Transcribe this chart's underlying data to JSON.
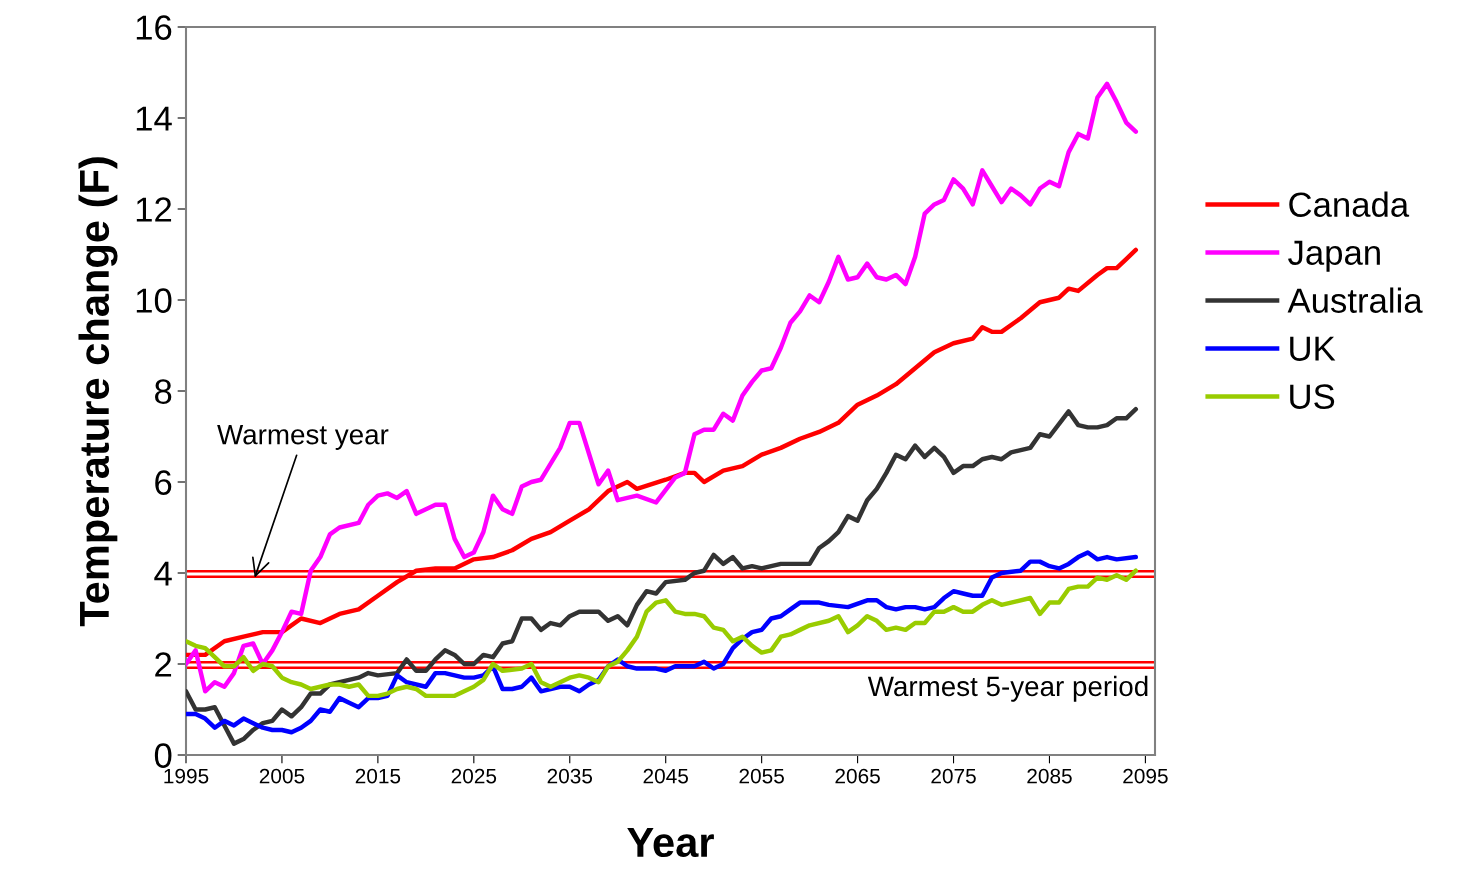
{
  "chart_data": {
    "type": "line",
    "xlabel": "Year",
    "ylabel": "Temperature change (F)",
    "xlim": [
      1995,
      2096
    ],
    "xticks": [
      1995,
      2005,
      2015,
      2025,
      2035,
      2045,
      2055,
      2065,
      2075,
      2085,
      2095
    ],
    "ylim": [
      0,
      16
    ],
    "yticks": [
      0,
      2,
      4,
      6,
      8,
      10,
      12,
      14,
      16
    ],
    "grid": false,
    "legend": "right",
    "marker": "none",
    "line_style": "solid",
    "ref_lines": [
      {
        "axis": "y",
        "value": 4.04,
        "label": "Warmest year",
        "color": "#ff0000"
      },
      {
        "axis": "y",
        "value": 3.92,
        "color": "#ff0000"
      },
      {
        "axis": "y",
        "value": 2.04,
        "label": "Warmest 5-year period",
        "color": "#ff0000"
      },
      {
        "axis": "y",
        "value": 1.92,
        "color": "#ff0000"
      }
    ],
    "series": [
      {
        "name": "Canada",
        "color": "#ff0000",
        "x": [
          1995,
          1997,
          1999,
          2001,
          2003,
          2005,
          2007,
          2009,
          2011,
          2013,
          2015,
          2017,
          2019,
          2021,
          2023,
          2025,
          2027,
          2029,
          2031,
          2033,
          2035,
          2037,
          2039,
          2041,
          2042,
          2045,
          2047,
          2048,
          2049,
          2051,
          2053,
          2055,
          2057,
          2059,
          2061,
          2063,
          2065,
          2067,
          2069,
          2071,
          2073,
          2075,
          2077,
          2078,
          2079,
          2080,
          2082,
          2084,
          2086,
          2087,
          2088,
          2090,
          2091,
          2092,
          2093,
          2094
        ],
        "values": [
          2.2,
          2.2,
          2.5,
          2.6,
          2.7,
          2.7,
          3.0,
          2.9,
          3.1,
          3.2,
          3.5,
          3.8,
          4.05,
          4.1,
          4.1,
          4.3,
          4.35,
          4.5,
          4.75,
          4.9,
          5.15,
          5.4,
          5.8,
          6.0,
          5.85,
          6.05,
          6.2,
          6.2,
          6.0,
          6.25,
          6.35,
          6.6,
          6.75,
          6.95,
          7.1,
          7.3,
          7.7,
          7.9,
          8.15,
          8.5,
          8.85,
          9.05,
          9.15,
          9.4,
          9.3,
          9.3,
          9.6,
          9.95,
          10.05,
          10.25,
          10.2,
          10.55,
          10.7,
          10.7,
          10.9,
          11.1
        ]
      },
      {
        "name": "Japan",
        "color": "#ff00ff",
        "x": [
          1995,
          1996,
          1997,
          1998,
          1999,
          2000,
          2001,
          2002,
          2003,
          2004,
          2005,
          2006,
          2007,
          2008,
          2009,
          2010,
          2011,
          2013,
          2014,
          2015,
          2016,
          2017,
          2018,
          2019,
          2021,
          2022,
          2023,
          2024,
          2025,
          2026,
          2027,
          2028,
          2029,
          2030,
          2031,
          2032,
          2034,
          2035,
          2036,
          2038,
          2039,
          2040,
          2042,
          2044,
          2046,
          2047,
          2048,
          2049,
          2050,
          2051,
          2052,
          2053,
          2054,
          2055,
          2056,
          2057,
          2058,
          2059,
          2060,
          2061,
          2062,
          2063,
          2064,
          2065,
          2066,
          2067,
          2068,
          2069,
          2070,
          2071,
          2072,
          2073,
          2074,
          2075,
          2076,
          2077,
          2078,
          2079,
          2080,
          2081,
          2082,
          2083,
          2084,
          2085,
          2086,
          2087,
          2088,
          2089,
          2090,
          2091,
          2092,
          2093,
          2094
        ],
        "values": [
          2.0,
          2.3,
          1.4,
          1.6,
          1.5,
          1.8,
          2.4,
          2.45,
          2.0,
          2.3,
          2.7,
          3.15,
          3.1,
          4.05,
          4.35,
          4.85,
          5.0,
          5.1,
          5.5,
          5.7,
          5.75,
          5.65,
          5.8,
          5.3,
          5.5,
          5.5,
          4.75,
          4.35,
          4.45,
          4.9,
          5.7,
          5.4,
          5.3,
          5.9,
          6.0,
          6.05,
          6.75,
          7.3,
          7.3,
          5.95,
          6.25,
          5.6,
          5.7,
          5.55,
          6.1,
          6.2,
          7.05,
          7.15,
          7.15,
          7.5,
          7.35,
          7.9,
          8.2,
          8.45,
          8.5,
          8.95,
          9.5,
          9.75,
          10.1,
          9.95,
          10.4,
          10.95,
          10.45,
          10.5,
          10.8,
          10.5,
          10.45,
          10.55,
          10.35,
          10.95,
          11.9,
          12.1,
          12.2,
          12.65,
          12.45,
          12.1,
          12.85,
          12.5,
          12.15,
          12.45,
          12.3,
          12.1,
          12.45,
          12.6,
          12.5,
          13.25,
          13.65,
          13.55,
          14.45,
          14.75,
          14.35,
          13.9,
          13.7
        ]
      },
      {
        "name": "Australia",
        "color": "#333333",
        "x": [
          1995,
          1996,
          1997,
          1998,
          1999,
          2000,
          2001,
          2002,
          2003,
          2004,
          2005,
          2006,
          2007,
          2008,
          2009,
          2010,
          2011,
          2013,
          2014,
          2015,
          2017,
          2018,
          2019,
          2020,
          2021,
          2022,
          2023,
          2024,
          2025,
          2026,
          2027,
          2028,
          2029,
          2030,
          2031,
          2032,
          2033,
          2034,
          2035,
          2036,
          2038,
          2039,
          2040,
          2041,
          2042,
          2043,
          2044,
          2045,
          2047,
          2048,
          2049,
          2050,
          2051,
          2052,
          2053,
          2054,
          2055,
          2057,
          2060,
          2061,
          2062,
          2063,
          2064,
          2065,
          2066,
          2067,
          2068,
          2069,
          2070,
          2071,
          2072,
          2073,
          2074,
          2075,
          2076,
          2077,
          2078,
          2079,
          2080,
          2081,
          2083,
          2084,
          2085,
          2087,
          2088,
          2089,
          2090,
          2091,
          2092,
          2093,
          2094
        ],
        "values": [
          1.4,
          1.0,
          1.0,
          1.05,
          0.65,
          0.25,
          0.35,
          0.55,
          0.7,
          0.75,
          1.0,
          0.85,
          1.05,
          1.35,
          1.35,
          1.55,
          1.6,
          1.7,
          1.8,
          1.75,
          1.8,
          2.1,
          1.85,
          1.85,
          2.1,
          2.3,
          2.2,
          2.0,
          2.0,
          2.2,
          2.15,
          2.45,
          2.5,
          3.0,
          3.0,
          2.75,
          2.9,
          2.85,
          3.05,
          3.15,
          3.15,
          2.95,
          3.05,
          2.85,
          3.3,
          3.6,
          3.55,
          3.8,
          3.85,
          4.0,
          4.05,
          4.4,
          4.2,
          4.35,
          4.1,
          4.15,
          4.1,
          4.2,
          4.2,
          4.55,
          4.7,
          4.9,
          5.25,
          5.15,
          5.6,
          5.85,
          6.2,
          6.6,
          6.5,
          6.8,
          6.55,
          6.75,
          6.55,
          6.2,
          6.35,
          6.35,
          6.5,
          6.55,
          6.5,
          6.65,
          6.75,
          7.05,
          7.0,
          7.55,
          7.25,
          7.2,
          7.2,
          7.25,
          7.4,
          7.4,
          7.6
        ]
      },
      {
        "name": "UK",
        "color": "#0000ff",
        "x": [
          1995,
          1996,
          1997,
          1998,
          1999,
          2000,
          2001,
          2002,
          2003,
          2004,
          2005,
          2006,
          2007,
          2008,
          2009,
          2010,
          2011,
          2012,
          2013,
          2014,
          2015,
          2016,
          2017,
          2018,
          2019,
          2020,
          2021,
          2022,
          2024,
          2025,
          2026,
          2027,
          2028,
          2029,
          2030,
          2031,
          2032,
          2033,
          2034,
          2035,
          2036,
          2037,
          2038,
          2039,
          2040,
          2041,
          2042,
          2044,
          2045,
          2046,
          2048,
          2049,
          2050,
          2051,
          2052,
          2053,
          2054,
          2055,
          2056,
          2057,
          2058,
          2059,
          2061,
          2062,
          2064,
          2066,
          2067,
          2068,
          2069,
          2070,
          2071,
          2072,
          2073,
          2074,
          2075,
          2076,
          2077,
          2078,
          2079,
          2080,
          2082,
          2083,
          2084,
          2085,
          2086,
          2087,
          2088,
          2089,
          2090,
          2091,
          2092,
          2094
        ],
        "values": [
          0.9,
          0.9,
          0.8,
          0.6,
          0.75,
          0.65,
          0.8,
          0.7,
          0.6,
          0.55,
          0.55,
          0.5,
          0.6,
          0.75,
          1.0,
          0.95,
          1.25,
          1.15,
          1.05,
          1.25,
          1.25,
          1.3,
          1.75,
          1.6,
          1.55,
          1.5,
          1.8,
          1.8,
          1.7,
          1.7,
          1.75,
          1.95,
          1.45,
          1.45,
          1.5,
          1.7,
          1.4,
          1.45,
          1.5,
          1.5,
          1.4,
          1.55,
          1.65,
          1.95,
          2.1,
          1.95,
          1.9,
          1.9,
          1.85,
          1.95,
          1.95,
          2.05,
          1.9,
          2.0,
          2.35,
          2.55,
          2.7,
          2.75,
          3.0,
          3.05,
          3.2,
          3.35,
          3.35,
          3.3,
          3.25,
          3.4,
          3.4,
          3.25,
          3.2,
          3.25,
          3.25,
          3.2,
          3.25,
          3.45,
          3.6,
          3.55,
          3.5,
          3.5,
          3.9,
          4.0,
          4.05,
          4.25,
          4.25,
          4.15,
          4.1,
          4.2,
          4.35,
          4.45,
          4.3,
          4.35,
          4.3,
          4.35
        ]
      },
      {
        "name": "US",
        "color": "#99cc00",
        "x": [
          1995,
          1996,
          1997,
          1998,
          1999,
          2000,
          2001,
          2002,
          2003,
          2004,
          2005,
          2006,
          2007,
          2008,
          2009,
          2010,
          2011,
          2012,
          2013,
          2014,
          2015,
          2016,
          2017,
          2018,
          2019,
          2020,
          2022,
          2023,
          2024,
          2025,
          2026,
          2027,
          2028,
          2030,
          2031,
          2032,
          2033,
          2034,
          2035,
          2036,
          2037,
          2038,
          2039,
          2040,
          2041,
          2042,
          2043,
          2044,
          2045,
          2046,
          2047,
          2048,
          2049,
          2050,
          2051,
          2052,
          2053,
          2054,
          2055,
          2056,
          2057,
          2058,
          2059,
          2060,
          2062,
          2063,
          2064,
          2065,
          2066,
          2067,
          2068,
          2069,
          2070,
          2071,
          2072,
          2073,
          2074,
          2075,
          2076,
          2077,
          2078,
          2079,
          2080,
          2081,
          2083,
          2084,
          2085,
          2086,
          2087,
          2088,
          2089,
          2090,
          2091,
          2092,
          2093,
          2094
        ],
        "values": [
          2.5,
          2.4,
          2.35,
          2.15,
          1.95,
          1.95,
          2.15,
          1.85,
          2.0,
          1.95,
          1.7,
          1.6,
          1.55,
          1.45,
          1.5,
          1.55,
          1.55,
          1.5,
          1.55,
          1.3,
          1.3,
          1.35,
          1.45,
          1.5,
          1.45,
          1.3,
          1.3,
          1.3,
          1.4,
          1.5,
          1.65,
          2.0,
          1.85,
          1.9,
          2.0,
          1.6,
          1.5,
          1.6,
          1.7,
          1.75,
          1.7,
          1.6,
          1.95,
          2.05,
          2.3,
          2.6,
          3.15,
          3.35,
          3.4,
          3.15,
          3.1,
          3.1,
          3.05,
          2.8,
          2.75,
          2.5,
          2.6,
          2.4,
          2.25,
          2.3,
          2.6,
          2.65,
          2.75,
          2.85,
          2.95,
          3.05,
          2.7,
          2.85,
          3.05,
          2.95,
          2.75,
          2.8,
          2.75,
          2.9,
          2.9,
          3.15,
          3.15,
          3.25,
          3.15,
          3.15,
          3.3,
          3.4,
          3.3,
          3.35,
          3.45,
          3.1,
          3.35,
          3.35,
          3.65,
          3.7,
          3.7,
          3.9,
          3.85,
          3.95,
          3.85,
          4.05
        ]
      }
    ]
  }
}
